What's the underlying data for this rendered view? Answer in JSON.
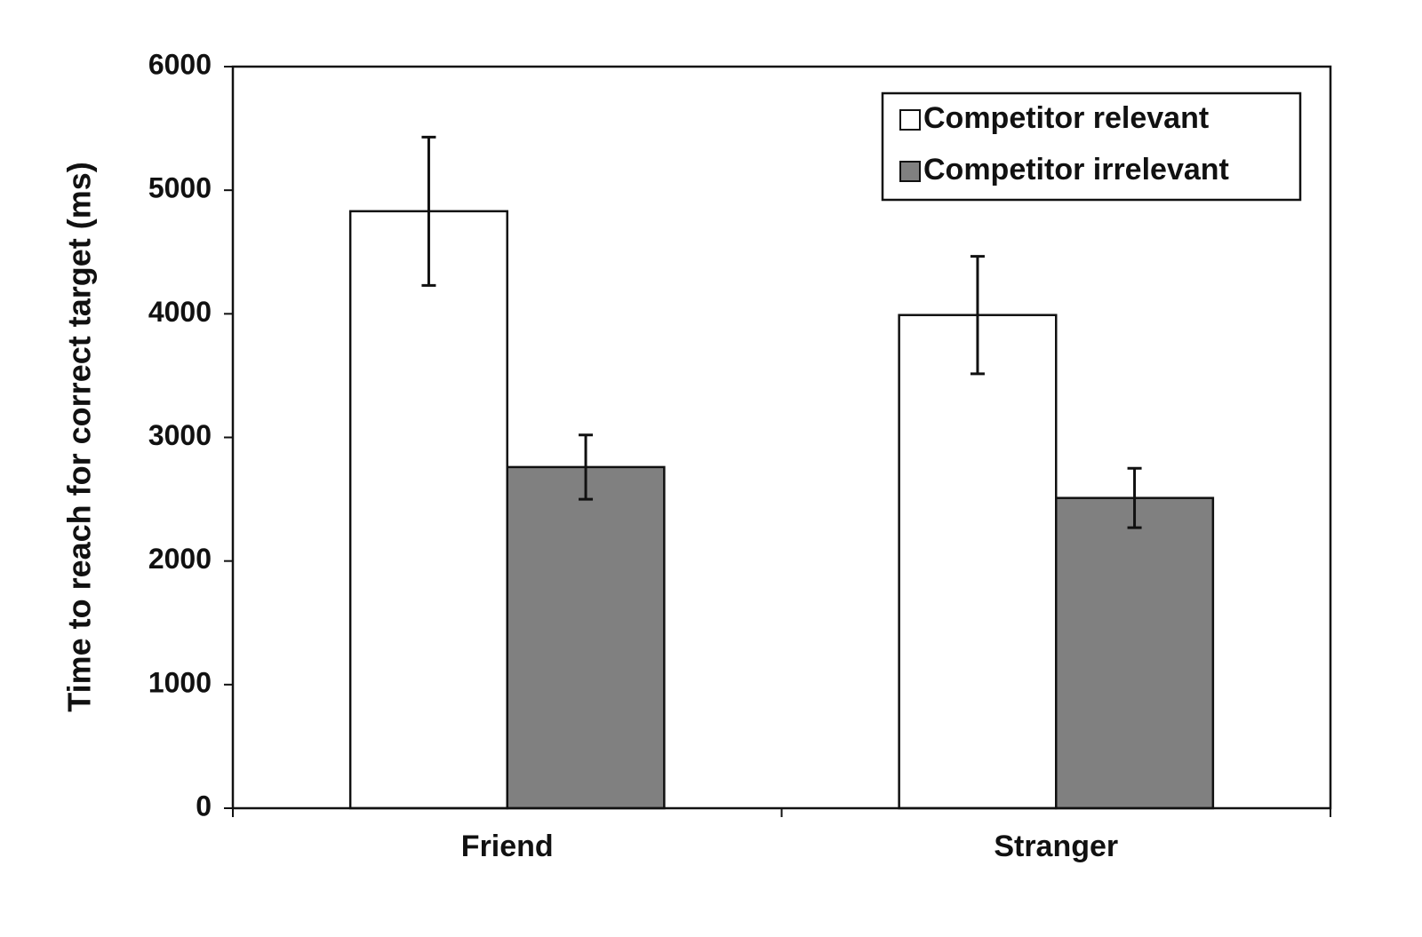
{
  "chart_data": {
    "type": "bar",
    "y_label": "Time to reach for correct target (ms)",
    "categories": [
      "Friend",
      "Stranger"
    ],
    "series": [
      {
        "name": "Competitor relevant",
        "color": "#ffffff",
        "values": [
          4830,
          3990
        ],
        "errors": [
          600,
          475
        ]
      },
      {
        "name": "Competitor irrelevant",
        "color": "#808080",
        "values": [
          2760,
          2510
        ],
        "errors": [
          260,
          240
        ]
      }
    ],
    "ylim": [
      0,
      6000
    ],
    "yticks": [
      0,
      1000,
      2000,
      3000,
      4000,
      5000,
      6000
    ],
    "legend": "upper right"
  }
}
